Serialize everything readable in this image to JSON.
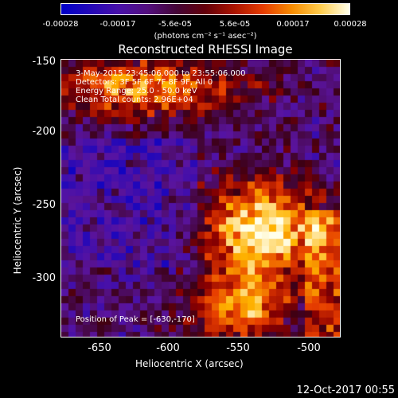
{
  "colorbar": {
    "ticks": [
      "-0.00028",
      "-0.00017",
      "-5.6e-05",
      "5.6e-05",
      "0.00017",
      "0.00028"
    ],
    "units": "(photons cm⁻² s⁻¹ asec⁻²)"
  },
  "title": "Reconstructed RHESSI Image",
  "info": {
    "time_range": "3-May-2015 23:45:06.000 to 23:55:06.000",
    "detectors": "Detectors: 3F 5F 6F 7F 8F 9F, All 0",
    "energy_range": "Energy Range: 25.0 - 50.0 keV",
    "method_counts": "Clean     Total counts: 2.96E+04",
    "peak": "Position of Peak = [-630,-170]"
  },
  "axes": {
    "xlabel": "Heliocentric X (arcsec)",
    "ylabel": "Heliocentric Y (arcsec)",
    "xticks": [
      "-650",
      "-600",
      "-550",
      "-500"
    ],
    "yticks": [
      "-150",
      "-200",
      "-250",
      "-300"
    ]
  },
  "timestamp": "12-Oct-2017 00:55"
}
